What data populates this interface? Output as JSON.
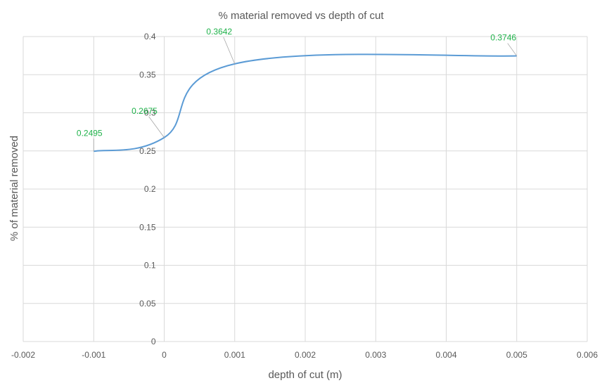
{
  "chart_data": {
    "type": "line",
    "title": "% material removed vs depth of cut",
    "xlabel": "depth of cut (m)",
    "ylabel": "%  of material removed",
    "xlim": [
      -0.002,
      0.006
    ],
    "ylim": [
      0,
      0.4
    ],
    "x_ticks": [
      "-0.002",
      "-0.001",
      "0",
      "0.001",
      "0.002",
      "0.003",
      "0.004",
      "0.005",
      "0.006"
    ],
    "y_ticks": [
      "0",
      "0.05",
      "0.1",
      "0.15",
      "0.2",
      "0.25",
      "0.3",
      "0.35",
      "0.4"
    ],
    "grid": true,
    "legend": "none",
    "series": [
      {
        "color": "#5b9bd5",
        "x": [
          -0.001,
          0,
          0.001,
          0.005
        ],
        "y": [
          0.2495,
          0.2675,
          0.3642,
          0.3746
        ]
      }
    ],
    "data_labels": [
      {
        "text": "0.2495",
        "x": -0.001,
        "y": 0.2495
      },
      {
        "text": "0.2675",
        "x": 0,
        "y": 0.2675
      },
      {
        "text": "0.3642",
        "x": 0.001,
        "y": 0.3642
      },
      {
        "text": "0.3746",
        "x": 0.005,
        "y": 0.3746
      }
    ],
    "label_color": "#1fb24a"
  }
}
